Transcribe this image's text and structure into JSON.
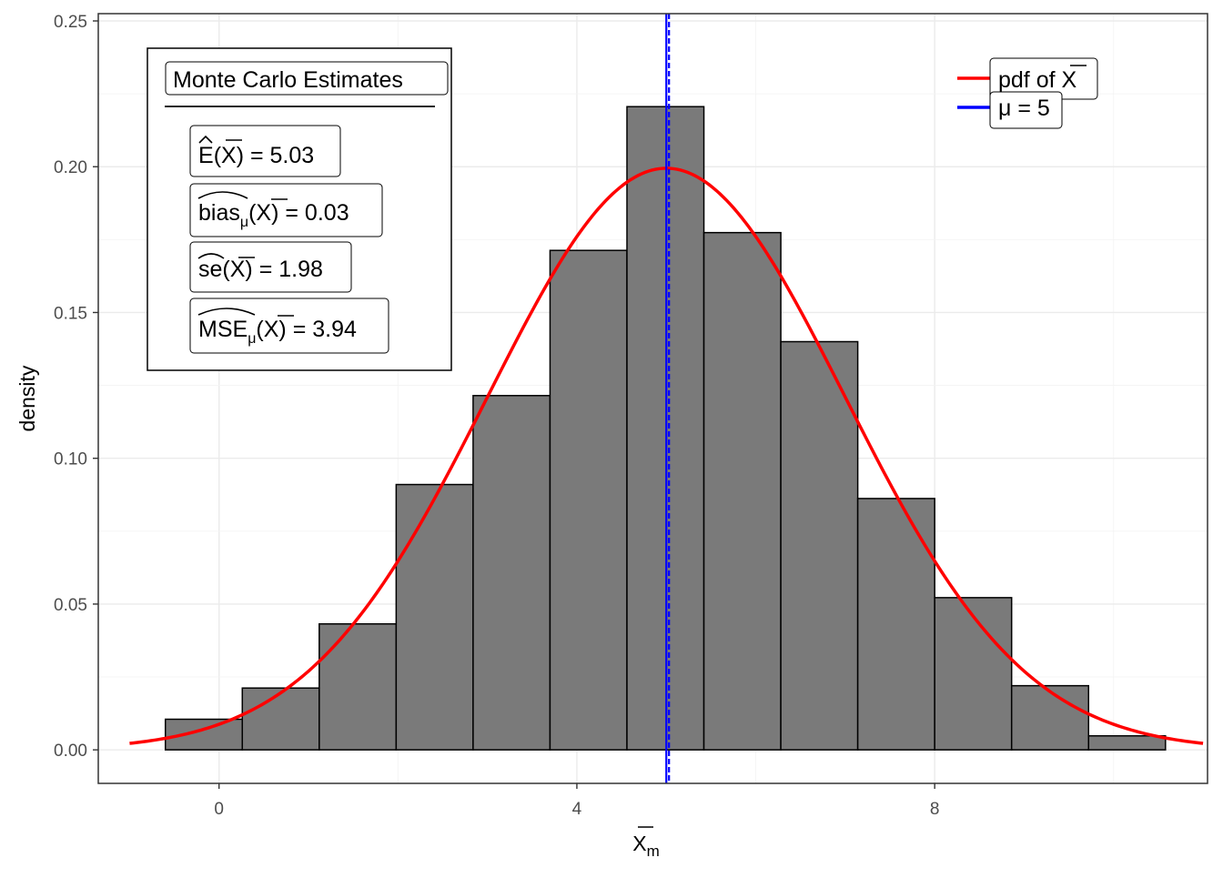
{
  "chart_data": {
    "type": "bar",
    "subtype": "histogram with density overlay",
    "xlabel_main": "X",
    "xlabel_sub": "m",
    "ylabel": "density",
    "xlim": [
      -1.35,
      11.05
    ],
    "ylim": [
      -0.0115,
      0.2525
    ],
    "x_ticks": [
      0,
      4,
      8
    ],
    "x_tick_labels": [
      "0",
      "4",
      "8"
    ],
    "y_ticks": [
      0,
      0.05,
      0.1,
      0.15,
      0.2,
      0.25
    ],
    "y_tick_labels": [
      "0.00",
      "0.05",
      "0.10",
      "0.15",
      "0.20",
      "0.25"
    ],
    "grid": true,
    "bins": [
      {
        "x0": -0.6,
        "x1": 0.26,
        "density": 0.0105
      },
      {
        "x0": 0.26,
        "x1": 1.12,
        "density": 0.0212
      },
      {
        "x0": 1.12,
        "x1": 1.98,
        "density": 0.0432
      },
      {
        "x0": 1.98,
        "x1": 2.84,
        "density": 0.091
      },
      {
        "x0": 2.84,
        "x1": 3.7,
        "density": 0.1215
      },
      {
        "x0": 3.7,
        "x1": 4.56,
        "density": 0.1713
      },
      {
        "x0": 4.56,
        "x1": 5.42,
        "density": 0.2206
      },
      {
        "x0": 5.42,
        "x1": 6.28,
        "density": 0.1774
      },
      {
        "x0": 6.28,
        "x1": 7.14,
        "density": 0.14
      },
      {
        "x0": 7.14,
        "x1": 8.0,
        "density": 0.0862
      },
      {
        "x0": 8.0,
        "x1": 8.86,
        "density": 0.0522
      },
      {
        "x0": 8.86,
        "x1": 9.72,
        "density": 0.022
      },
      {
        "x0": 9.72,
        "x1": 10.58,
        "density": 0.0048
      }
    ],
    "density_curve": {
      "name": "pdf of X",
      "distribution": "normal",
      "mean": 5,
      "sd": 2,
      "x_range": [
        -1,
        11
      ],
      "color": "#ff0000"
    },
    "reference_lines": [
      {
        "name": "mu",
        "x": 5,
        "style": "solid",
        "color": "#0000ff"
      },
      {
        "name": "estimate",
        "x": 5.03,
        "style": "dashed",
        "color": "#0000ff"
      }
    ],
    "legend": {
      "placement": "top-right",
      "entries": [
        {
          "label": "pdf of",
          "symbol": "X",
          "color": "#ff0000"
        },
        {
          "label": "μ = 5",
          "color": "#0000ff"
        }
      ]
    },
    "annotation": {
      "title": "Monte Carlo Estimates",
      "placement": "top-left",
      "estimates": [
        {
          "stat": "E",
          "value": "= 5.03"
        },
        {
          "stat": "bias",
          "sub": "μ",
          "value": "= 0.03"
        },
        {
          "stat": "se",
          "value": "= 1.98"
        },
        {
          "stat": "MSE",
          "sub": "μ",
          "value": "= 3.94"
        }
      ],
      "argument": "X"
    }
  }
}
